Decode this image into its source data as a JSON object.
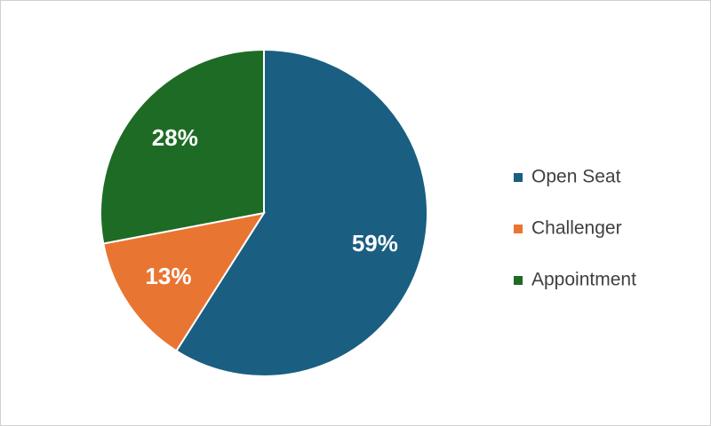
{
  "chart_data": {
    "type": "pie",
    "categories": [
      "Open Seat",
      "Challenger",
      "Appointment"
    ],
    "values": [
      59,
      13,
      28
    ],
    "value_labels": [
      "59%",
      "13%",
      "28%"
    ],
    "colors": [
      "#1a5e82",
      "#e97532",
      "#1e6b25"
    ],
    "legend": "right"
  }
}
